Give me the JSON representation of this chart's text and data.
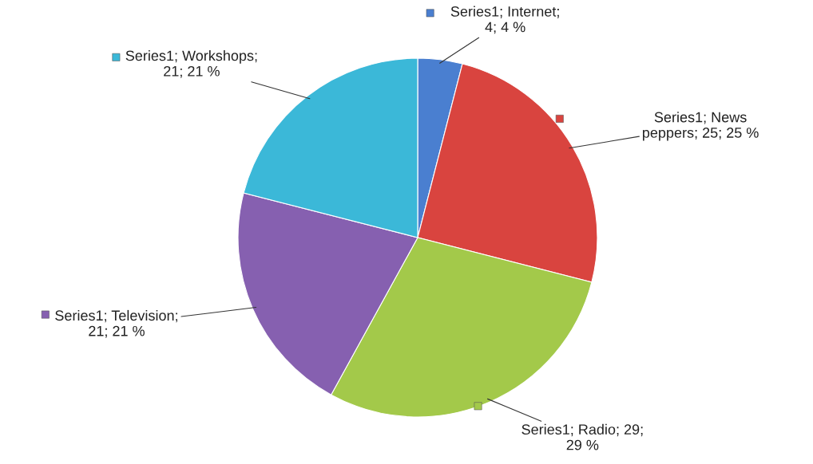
{
  "chart_data": {
    "type": "pie",
    "categories": [
      "Series1; Internet; 4; 4 %",
      "Series1; News peppers; 25; 25 %",
      "Series1; Radio; 29; 29 %",
      "Series1; Television; 21; 21 %",
      "Series1; Workshops; 21; 21 %"
    ],
    "values": [
      4,
      25,
      29,
      21,
      21
    ],
    "colors": [
      "#4a7fd0",
      "#d9443f",
      "#a3c94a",
      "#8660b0",
      "#3bb8d8"
    ],
    "legend": "left"
  }
}
